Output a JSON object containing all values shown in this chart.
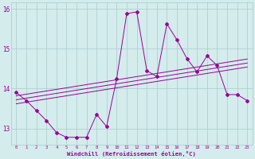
{
  "x_values": [
    0,
    1,
    2,
    3,
    4,
    5,
    6,
    7,
    8,
    9,
    10,
    11,
    12,
    13,
    14,
    15,
    16,
    17,
    18,
    19,
    20,
    21,
    22,
    23
  ],
  "main_line": [
    13.9,
    13.7,
    13.45,
    13.2,
    12.9,
    12.78,
    12.78,
    12.78,
    13.35,
    13.05,
    14.25,
    15.88,
    15.92,
    14.45,
    14.3,
    15.62,
    15.22,
    14.75,
    14.42,
    14.82,
    14.58,
    13.85,
    13.85,
    13.7
  ],
  "trend1": [
    13.82,
    13.86,
    13.9,
    13.94,
    13.98,
    14.02,
    14.06,
    14.1,
    14.14,
    14.18,
    14.22,
    14.26,
    14.3,
    14.34,
    14.38,
    14.42,
    14.46,
    14.5,
    14.54,
    14.58,
    14.62,
    14.66,
    14.7,
    14.74
  ],
  "trend2": [
    13.72,
    13.76,
    13.8,
    13.84,
    13.88,
    13.92,
    13.96,
    14.0,
    14.04,
    14.08,
    14.12,
    14.16,
    14.2,
    14.24,
    14.28,
    14.32,
    14.36,
    14.4,
    14.44,
    14.48,
    14.52,
    14.56,
    14.6,
    14.64
  ],
  "trend3": [
    13.62,
    13.66,
    13.7,
    13.74,
    13.78,
    13.82,
    13.86,
    13.9,
    13.94,
    13.98,
    14.02,
    14.06,
    14.1,
    14.14,
    14.18,
    14.22,
    14.26,
    14.3,
    14.34,
    14.38,
    14.42,
    14.46,
    14.5,
    14.54
  ],
  "line_color": "#990099",
  "bg_color": "#d4ecec",
  "grid_color": "#b0d0d0",
  "xlabel": "Windchill (Refroidissement éolien,°C)",
  "ylim": [
    12.6,
    16.15
  ],
  "xlim": [
    -0.5,
    23.5
  ],
  "yticks": [
    13,
    14,
    15,
    16
  ],
  "xtick_labels": [
    "0",
    "1",
    "2",
    "3",
    "4",
    "5",
    "6",
    "7",
    "8",
    "9",
    "10",
    "11",
    "12",
    "13",
    "14",
    "15",
    "16",
    "17",
    "18",
    "19",
    "20",
    "21",
    "22",
    "23"
  ]
}
